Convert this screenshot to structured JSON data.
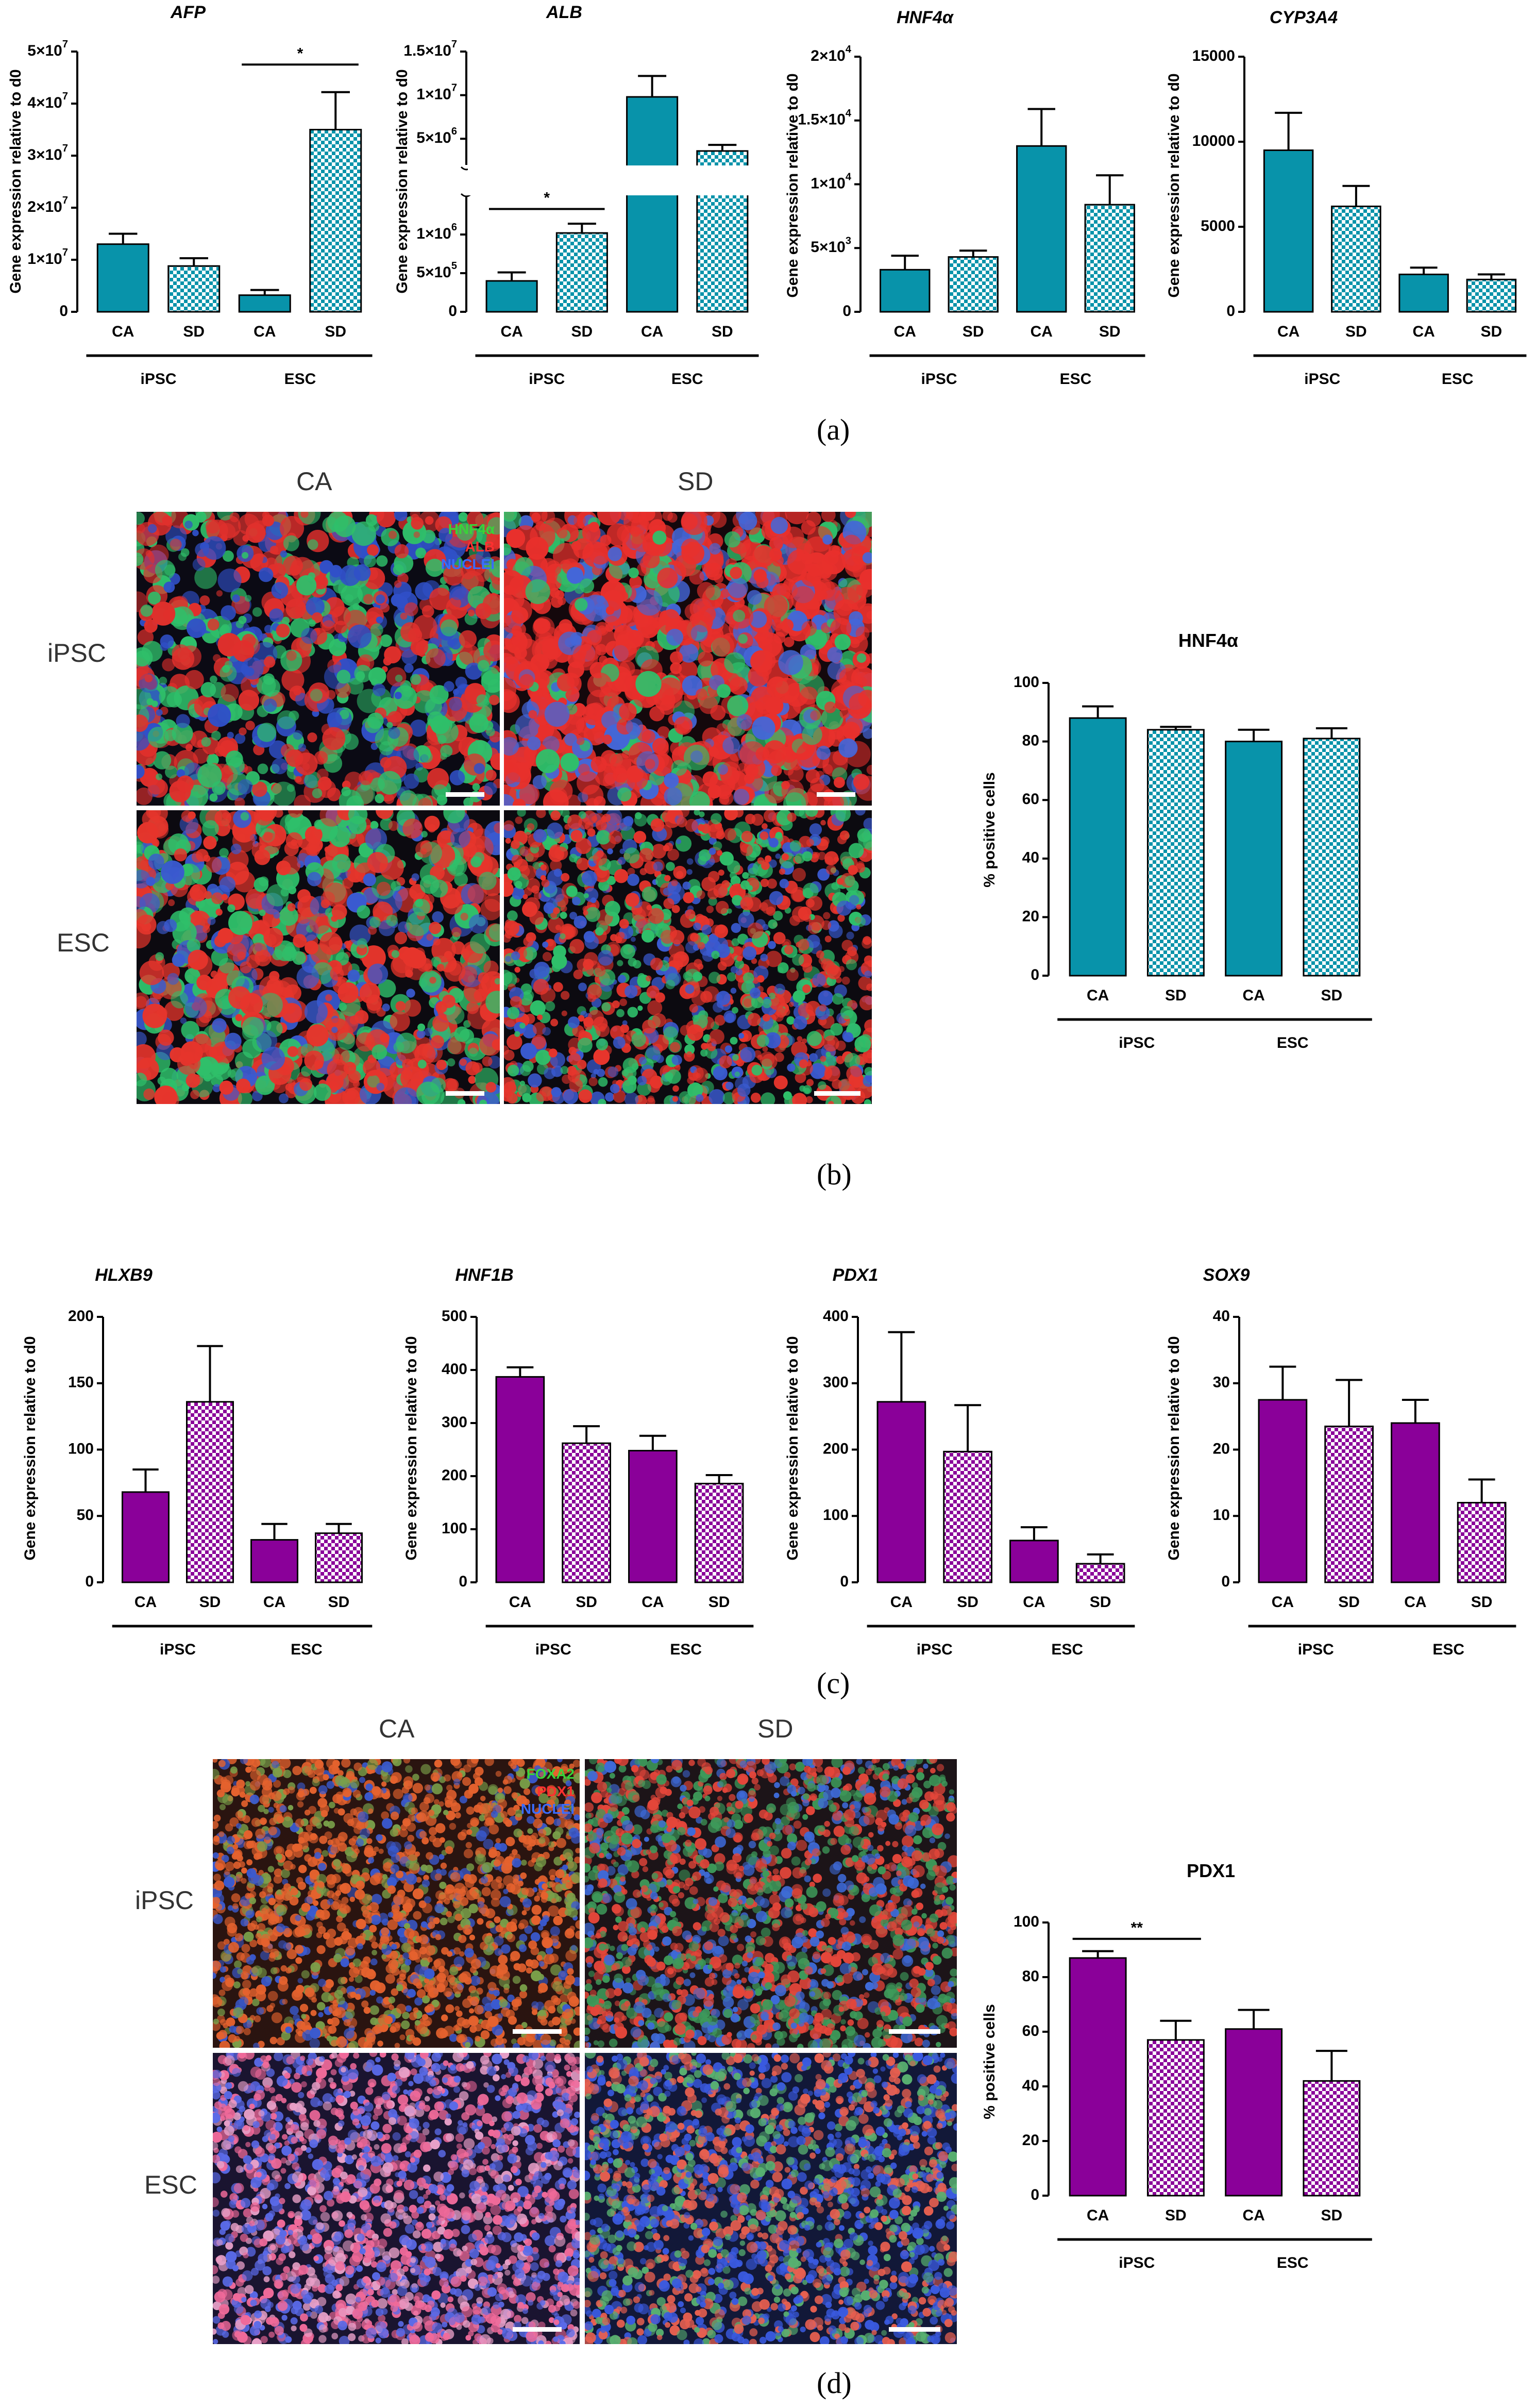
{
  "panels": {
    "a": "(a)",
    "b": "(b)",
    "c": "(c)",
    "d": "(d)"
  },
  "colors": {
    "teal": "#0893aa",
    "purple": "#8a0099"
  },
  "micro_b": {
    "col_labels": [
      "CA",
      "SD"
    ],
    "row_labels": [
      "iPSC",
      "ESC"
    ],
    "legend": [
      "HNF4α",
      "ALB",
      "NUCLEI"
    ],
    "legend_colors": [
      "#39d339",
      "#ff3030",
      "#3a6cff"
    ]
  },
  "micro_d": {
    "col_labels": [
      "CA",
      "SD"
    ],
    "row_labels": [
      "iPSC",
      "ESC"
    ],
    "legend": [
      "FOXA2",
      "PDX1",
      "NUCLEI"
    ],
    "legend_colors": [
      "#39d339",
      "#ff3030",
      "#3a6cff"
    ]
  },
  "chart_data": [
    {
      "id": "afp",
      "type": "bar",
      "title": "AFP",
      "title_italic": true,
      "ylabel": "Gene expression relative to d0",
      "color": "teal",
      "sci": 7,
      "ylim": [
        0,
        50000000
      ],
      "yticks": [
        {
          "v": 0,
          "t": "0"
        },
        {
          "v": 10000000,
          "t": "1×10",
          "e": "7"
        },
        {
          "v": 20000000,
          "t": "2×10",
          "e": "7"
        },
        {
          "v": 30000000,
          "t": "3×10",
          "e": "7"
        },
        {
          "v": 40000000,
          "t": "4×10",
          "e": "7"
        },
        {
          "v": 50000000,
          "t": "5×10",
          "e": "7"
        }
      ],
      "categories": [
        "CA",
        "SD",
        "CA",
        "SD"
      ],
      "groups": [
        "iPSC",
        "ESC"
      ],
      "values": [
        13000000,
        8800000,
        3200000,
        35000000
      ],
      "errors": [
        2000000,
        1500000,
        1000000,
        7200000
      ],
      "sig": [
        {
          "from": 2,
          "to": 3,
          "label": "*",
          "at": 47500000
        }
      ]
    },
    {
      "id": "alb",
      "type": "bar",
      "title": "ALB",
      "title_italic": true,
      "ylabel": "Gene expression relative to d0",
      "color": "teal",
      "broken": true,
      "lower_ylim": [
        0,
        1500000
      ],
      "upper_ylim": [
        2000000,
        15000000
      ],
      "lower_ticks": [
        {
          "v": 0,
          "t": "0"
        },
        {
          "v": 500000,
          "t": "5×10",
          "e": "5"
        },
        {
          "v": 1000000,
          "t": "1×10",
          "e": "6"
        }
      ],
      "upper_ticks": [
        {
          "v": 5000000,
          "t": "5×10",
          "e": "6"
        },
        {
          "v": 10000000,
          "t": "1×10",
          "e": "7"
        },
        {
          "v": 15000000,
          "t": "1.5×10",
          "e": "7"
        }
      ],
      "categories": [
        "CA",
        "SD",
        "CA",
        "SD"
      ],
      "groups": [
        "iPSC",
        "ESC"
      ],
      "values": [
        400000,
        1020000,
        9800000,
        3600000
      ],
      "errors": [
        110000,
        120000,
        2400000,
        700000
      ],
      "sig": [
        {
          "from": 0,
          "to": 1,
          "label": "*",
          "at": 1330000
        }
      ]
    },
    {
      "id": "hnf4a",
      "type": "bar",
      "title": "HNF4α",
      "title_italic": true,
      "ylabel": "Gene expression relative to d0",
      "color": "teal",
      "ylim": [
        0,
        20000
      ],
      "yticks": [
        {
          "v": 0,
          "t": "0"
        },
        {
          "v": 5000,
          "t": "5×10",
          "e": "3"
        },
        {
          "v": 10000,
          "t": "1×10",
          "e": "4"
        },
        {
          "v": 15000,
          "t": "1.5×10",
          "e": "4"
        },
        {
          "v": 20000,
          "t": "2×10",
          "e": "4"
        }
      ],
      "categories": [
        "CA",
        "SD",
        "CA",
        "SD"
      ],
      "groups": [
        "iPSC",
        "ESC"
      ],
      "values": [
        3300,
        4300,
        13000,
        8400
      ],
      "errors": [
        1100,
        500,
        2900,
        2300
      ],
      "sig": []
    },
    {
      "id": "cyp3a4",
      "type": "bar",
      "title": "CYP3A4",
      "title_italic": true,
      "ylabel": "Gene expression relative to d0",
      "color": "teal",
      "ylim": [
        0,
        15000
      ],
      "yticks": [
        {
          "v": 0,
          "t": "0"
        },
        {
          "v": 5000,
          "t": "5000"
        },
        {
          "v": 10000,
          "t": "10000"
        },
        {
          "v": 15000,
          "t": "15000"
        }
      ],
      "categories": [
        "CA",
        "SD",
        "CA",
        "SD"
      ],
      "groups": [
        "iPSC",
        "ESC"
      ],
      "values": [
        9500,
        6200,
        2200,
        1900
      ],
      "errors": [
        2200,
        1200,
        400,
        300
      ],
      "sig": []
    },
    {
      "id": "hnf4a_pos",
      "type": "bar",
      "title": "HNF4α",
      "title_italic": false,
      "ylabel": "% positive cells",
      "color": "teal",
      "ylim": [
        0,
        100
      ],
      "yticks": [
        {
          "v": 0,
          "t": "0"
        },
        {
          "v": 20,
          "t": "20"
        },
        {
          "v": 40,
          "t": "40"
        },
        {
          "v": 60,
          "t": "60"
        },
        {
          "v": 80,
          "t": "80"
        },
        {
          "v": 100,
          "t": "100"
        }
      ],
      "categories": [
        "CA",
        "SD",
        "CA",
        "SD"
      ],
      "groups": [
        "iPSC",
        "ESC"
      ],
      "values": [
        88,
        84,
        80,
        81
      ],
      "errors": [
        4,
        1,
        4,
        3.5
      ],
      "sig": []
    },
    {
      "id": "hlxb9",
      "type": "bar",
      "title": "HLXB9",
      "title_italic": true,
      "ylabel": "Gene expression relative to d0",
      "color": "purple",
      "ylim": [
        0,
        200
      ],
      "yticks": [
        {
          "v": 0,
          "t": "0"
        },
        {
          "v": 50,
          "t": "50"
        },
        {
          "v": 100,
          "t": "100"
        },
        {
          "v": 150,
          "t": "150"
        },
        {
          "v": 200,
          "t": "200"
        }
      ],
      "categories": [
        "CA",
        "SD",
        "CA",
        "SD"
      ],
      "groups": [
        "iPSC",
        "ESC"
      ],
      "values": [
        68,
        136,
        32,
        37
      ],
      "errors": [
        17,
        42,
        12,
        7
      ],
      "sig": []
    },
    {
      "id": "hnf1b",
      "type": "bar",
      "title": "HNF1B",
      "title_italic": true,
      "ylabel": "Gene expression relative to d0",
      "color": "purple",
      "ylim": [
        0,
        500
      ],
      "yticks": [
        {
          "v": 0,
          "t": "0"
        },
        {
          "v": 100,
          "t": "100"
        },
        {
          "v": 200,
          "t": "200"
        },
        {
          "v": 300,
          "t": "300"
        },
        {
          "v": 400,
          "t": "400"
        },
        {
          "v": 500,
          "t": "500"
        }
      ],
      "categories": [
        "CA",
        "SD",
        "CA",
        "SD"
      ],
      "groups": [
        "iPSC",
        "ESC"
      ],
      "values": [
        387,
        262,
        248,
        186
      ],
      "errors": [
        18,
        32,
        28,
        16
      ],
      "sig": []
    },
    {
      "id": "pdx1",
      "type": "bar",
      "title": "PDX1",
      "title_italic": true,
      "ylabel": "Gene expression relative to d0",
      "color": "purple",
      "ylim": [
        0,
        400
      ],
      "yticks": [
        {
          "v": 0,
          "t": "0"
        },
        {
          "v": 100,
          "t": "100"
        },
        {
          "v": 200,
          "t": "200"
        },
        {
          "v": 300,
          "t": "300"
        },
        {
          "v": 400,
          "t": "400"
        }
      ],
      "categories": [
        "CA",
        "SD",
        "CA",
        "SD"
      ],
      "groups": [
        "iPSC",
        "ESC"
      ],
      "values": [
        272,
        197,
        63,
        28
      ],
      "errors": [
        105,
        70,
        20,
        14
      ],
      "sig": []
    },
    {
      "id": "sox9",
      "type": "bar",
      "title": "SOX9",
      "title_italic": true,
      "ylabel": "Gene expression relative to d0",
      "color": "purple",
      "ylim": [
        0,
        40
      ],
      "yticks": [
        {
          "v": 0,
          "t": "0"
        },
        {
          "v": 10,
          "t": "10"
        },
        {
          "v": 20,
          "t": "20"
        },
        {
          "v": 30,
          "t": "30"
        },
        {
          "v": 40,
          "t": "40"
        }
      ],
      "categories": [
        "CA",
        "SD",
        "CA",
        "SD"
      ],
      "groups": [
        "iPSC",
        "ESC"
      ],
      "values": [
        27.5,
        23.5,
        24,
        12
      ],
      "errors": [
        5,
        7,
        3.5,
        3.5
      ],
      "sig": []
    },
    {
      "id": "pdx1_pos",
      "type": "bar",
      "title": "PDX1",
      "title_italic": false,
      "ylabel": "% positive cells",
      "color": "purple",
      "ylim": [
        0,
        100
      ],
      "yticks": [
        {
          "v": 0,
          "t": "0"
        },
        {
          "v": 20,
          "t": "20"
        },
        {
          "v": 40,
          "t": "40"
        },
        {
          "v": 60,
          "t": "60"
        },
        {
          "v": 80,
          "t": "80"
        },
        {
          "v": 100,
          "t": "100"
        }
      ],
      "categories": [
        "CA",
        "SD",
        "CA",
        "SD"
      ],
      "groups": [
        "iPSC",
        "ESC"
      ],
      "values": [
        87,
        57,
        61,
        42
      ],
      "errors": [
        2.5,
        7,
        7,
        11
      ],
      "sig": [
        {
          "from": 0,
          "to": 1,
          "label": "**",
          "at": 94
        }
      ]
    }
  ]
}
